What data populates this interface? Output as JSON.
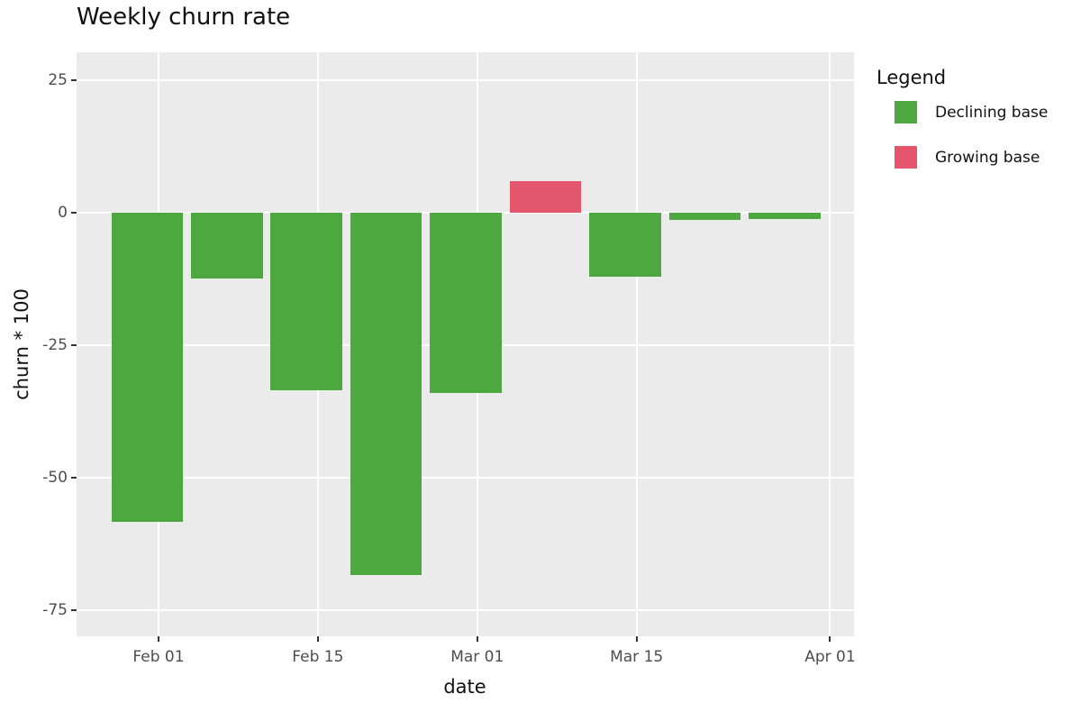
{
  "chart_data": {
    "type": "bar",
    "title": "Weekly churn rate",
    "xlabel": "date",
    "ylabel": "churn * 100",
    "x_domain_days": [
      -7.2,
      61.1
    ],
    "y_domain": [
      -80,
      30.2
    ],
    "x_ticks": [
      {
        "label": "Feb 01",
        "day": 0
      },
      {
        "label": "Feb 15",
        "day": 14
      },
      {
        "label": "Mar 01",
        "day": 28
      },
      {
        "label": "Mar 15",
        "day": 42
      },
      {
        "label": "Apr 01",
        "day": 59
      }
    ],
    "y_ticks": [
      25,
      0,
      -25,
      -50,
      -75
    ],
    "bar_width_days": 6.3,
    "bars": [
      {
        "date": "Jan 31",
        "day": -1,
        "value": -58.4,
        "group": "Declining base"
      },
      {
        "date": "Feb 07",
        "day": 6,
        "value": -12.5,
        "group": "Declining base"
      },
      {
        "date": "Feb 14",
        "day": 13,
        "value": -33.6,
        "group": "Declining base"
      },
      {
        "date": "Feb 21",
        "day": 20,
        "value": -68.5,
        "group": "Declining base"
      },
      {
        "date": "Feb 28",
        "day": 27,
        "value": -34.1,
        "group": "Declining base"
      },
      {
        "date": "Mar 07",
        "day": 34,
        "value": 5.9,
        "group": "Growing base"
      },
      {
        "date": "Mar 14",
        "day": 41,
        "value": -12.2,
        "group": "Declining base"
      },
      {
        "date": "Mar 21",
        "day": 48,
        "value": -1.4,
        "group": "Declining base"
      },
      {
        "date": "Mar 28",
        "day": 55,
        "value": -1.2,
        "group": "Declining base"
      }
    ],
    "legend": {
      "title": "Legend",
      "position": "right",
      "items": [
        {
          "label": "Declining base",
          "color": "#4CA83F"
        },
        {
          "label": "Growing base",
          "color": "#E4566B"
        }
      ]
    },
    "grid": "major-only",
    "colors": {
      "panel_background": "#EBEBEB",
      "gridline": "#FFFFFF",
      "tick_text": "#4D4D4D",
      "axis_text": "#111111",
      "tick_mark": "#333333"
    }
  }
}
